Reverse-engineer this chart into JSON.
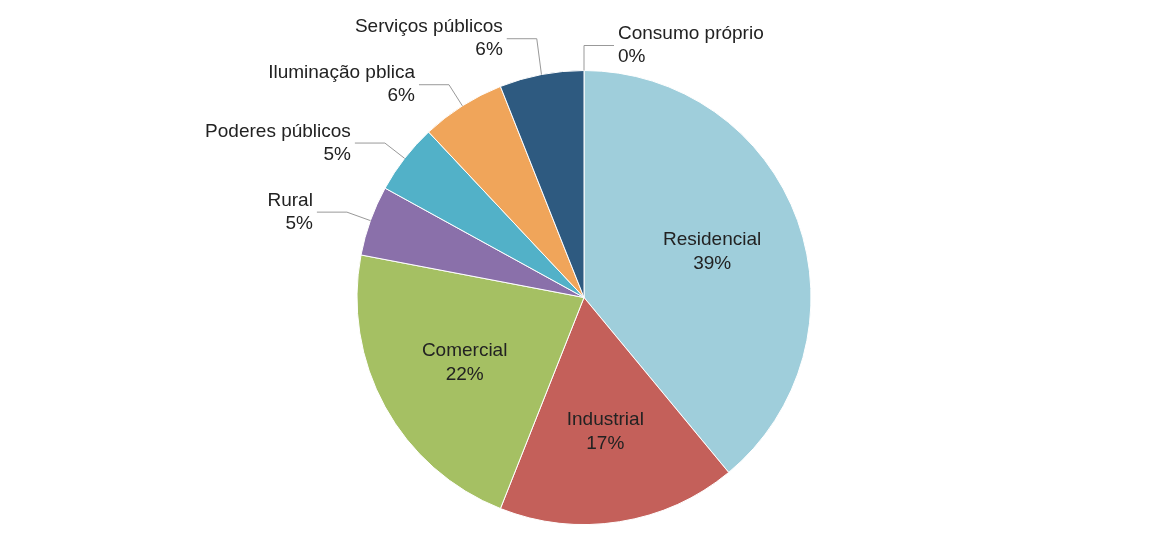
{
  "chart_data": {
    "type": "pie",
    "categories": [
      "Residencial",
      "Industrial",
      "Comercial",
      "Rural",
      "Poderes públicos",
      "Iluminação pblica",
      "Serviços públicos",
      "Consumo próprio"
    ],
    "values": [
      39,
      17,
      22,
      5,
      5,
      6,
      6,
      0
    ],
    "colors": [
      "#9fcedb",
      "#c4605a",
      "#a5c063",
      "#8a70aa",
      "#52b1c8",
      "#f0a55a",
      "#2e5a80",
      "#1f3f66"
    ],
    "value_labels": [
      "39%",
      "17%",
      "22%",
      "5%",
      "5%",
      "6%",
      "6%",
      "0%"
    ],
    "legend": false
  }
}
